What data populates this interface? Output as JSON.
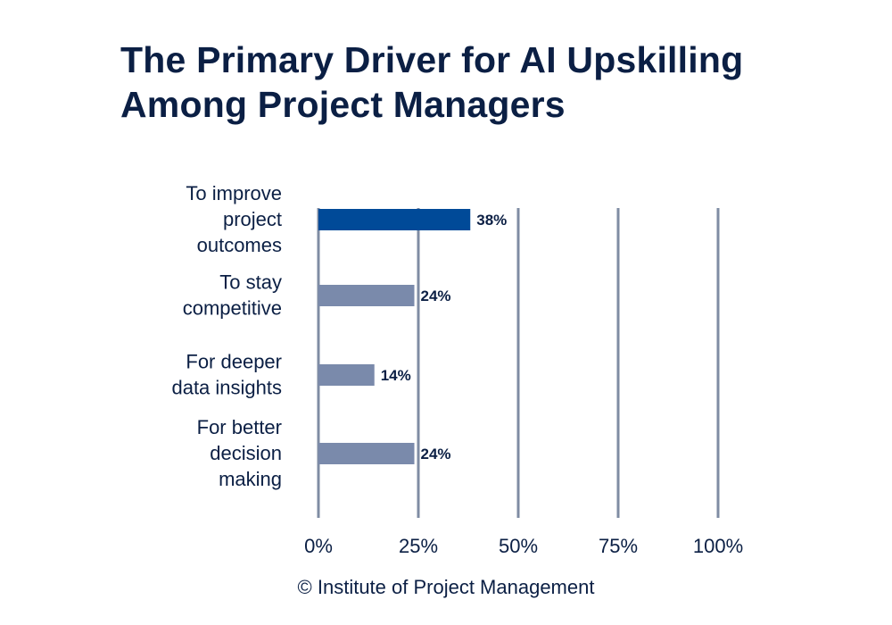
{
  "title": {
    "line1": "The Primary Driver for AI Upskilling",
    "line2": "Among Project Managers"
  },
  "chart_data": {
    "type": "bar",
    "orientation": "horizontal",
    "categories": [
      [
        "To improve",
        "project",
        "outcomes"
      ],
      [
        "To stay",
        "competitive"
      ],
      [
        "For deeper",
        "data insights"
      ],
      [
        "For better",
        "decision",
        "making"
      ]
    ],
    "values": [
      38,
      24,
      14,
      24
    ],
    "value_labels": [
      "38%",
      "24%",
      "14%",
      "24%"
    ],
    "highlight_index": 0,
    "xlim": [
      0,
      100
    ],
    "x_ticks": [
      0,
      25,
      50,
      75,
      100
    ],
    "x_tick_labels": [
      "0%",
      "25%",
      "50%",
      "75%",
      "100%"
    ],
    "grid": true,
    "colors": {
      "highlight": "#004a98",
      "default": "#7a8aab",
      "grid": "#7f8ca3",
      "text": "#0b1f44"
    }
  },
  "footer": "© Institute of Project Management"
}
